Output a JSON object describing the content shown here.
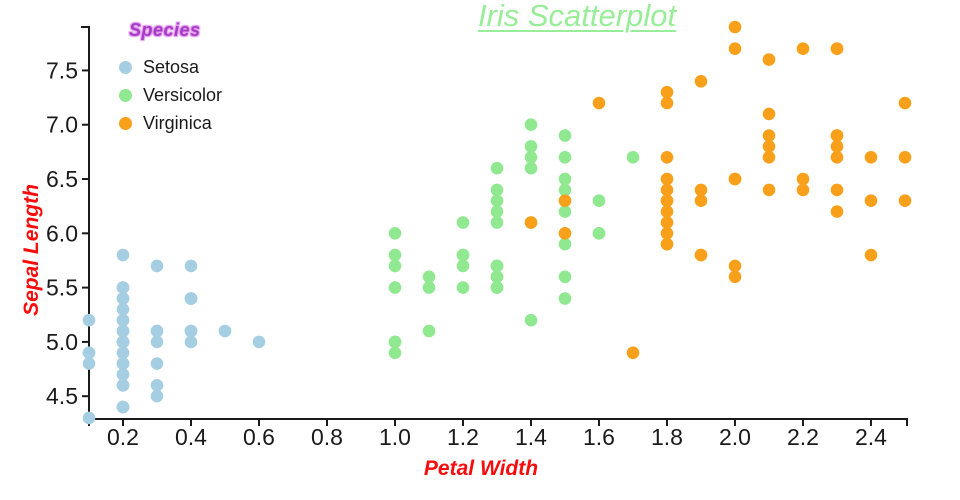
{
  "chart_data": {
    "type": "scatter",
    "title": "Iris Scatterplot",
    "title_color": "#98EE98",
    "xlabel": "Petal Width",
    "ylabel": "Sepal Length",
    "axis_label_color": "#F80D0D",
    "axis_color": "#1a1a1a",
    "legend_title": "Species",
    "legend_title_color": "#A53CC8",
    "legend_title_halo_color": "#E39BE8",
    "legend_position": "top-left",
    "grid": false,
    "xlim": [
      0.1,
      2.506
    ],
    "ylim": [
      4.29,
      7.9
    ],
    "x_ticks": [
      "0.2",
      "0.4",
      "0.6",
      "0.8",
      "1.0",
      "1.2",
      "1.4",
      "1.6",
      "1.8",
      "2.0",
      "2.2",
      "2.4"
    ],
    "y_ticks": [
      "4.5",
      "5.0",
      "5.5",
      "6.0",
      "6.5",
      "7.0",
      "7.5"
    ],
    "series": [
      {
        "name": "Setosa",
        "color": "#A6CEE3",
        "points": [
          [
            0.2,
            5.1
          ],
          [
            0.2,
            4.9
          ],
          [
            0.2,
            4.7
          ],
          [
            0.2,
            4.6
          ],
          [
            0.2,
            5.0
          ],
          [
            0.4,
            5.4
          ],
          [
            0.3,
            4.6
          ],
          [
            0.2,
            5.0
          ],
          [
            0.2,
            4.4
          ],
          [
            0.1,
            4.9
          ],
          [
            0.2,
            5.4
          ],
          [
            0.2,
            4.8
          ],
          [
            0.1,
            4.8
          ],
          [
            0.1,
            4.3
          ],
          [
            0.2,
            5.8
          ],
          [
            0.4,
            5.7
          ],
          [
            0.4,
            5.4
          ],
          [
            0.3,
            5.1
          ],
          [
            0.3,
            5.7
          ],
          [
            0.3,
            5.1
          ],
          [
            0.2,
            5.4
          ],
          [
            0.4,
            5.1
          ],
          [
            0.2,
            4.6
          ],
          [
            0.5,
            5.1
          ],
          [
            0.2,
            4.8
          ],
          [
            0.2,
            5.0
          ],
          [
            0.4,
            5.0
          ],
          [
            0.2,
            5.2
          ],
          [
            0.2,
            5.2
          ],
          [
            0.2,
            4.7
          ],
          [
            0.2,
            4.8
          ],
          [
            0.4,
            5.4
          ],
          [
            0.1,
            5.2
          ],
          [
            0.2,
            5.5
          ],
          [
            0.2,
            4.9
          ],
          [
            0.2,
            5.0
          ],
          [
            0.2,
            5.5
          ],
          [
            0.1,
            4.9
          ],
          [
            0.2,
            4.4
          ],
          [
            0.2,
            5.1
          ],
          [
            0.3,
            5.0
          ],
          [
            0.3,
            4.5
          ],
          [
            0.2,
            4.4
          ],
          [
            0.6,
            5.0
          ],
          [
            0.4,
            5.1
          ],
          [
            0.3,
            4.8
          ],
          [
            0.2,
            5.1
          ],
          [
            0.2,
            4.6
          ],
          [
            0.2,
            5.3
          ],
          [
            0.2,
            5.0
          ]
        ]
      },
      {
        "name": "Versicolor",
        "color": "#90E890",
        "points": [
          [
            1.4,
            7.0
          ],
          [
            1.5,
            6.4
          ],
          [
            1.5,
            6.9
          ],
          [
            1.3,
            5.5
          ],
          [
            1.5,
            6.5
          ],
          [
            1.3,
            5.7
          ],
          [
            1.6,
            6.3
          ],
          [
            1.0,
            4.9
          ],
          [
            1.3,
            6.6
          ],
          [
            1.4,
            5.2
          ],
          [
            1.0,
            5.0
          ],
          [
            1.5,
            5.9
          ],
          [
            1.0,
            6.0
          ],
          [
            1.4,
            6.1
          ],
          [
            1.3,
            5.6
          ],
          [
            1.4,
            6.7
          ],
          [
            1.5,
            5.6
          ],
          [
            1.0,
            5.8
          ],
          [
            1.5,
            6.2
          ],
          [
            1.1,
            5.6
          ],
          [
            1.8,
            5.9
          ],
          [
            1.3,
            6.1
          ],
          [
            1.5,
            6.3
          ],
          [
            1.2,
            6.1
          ],
          [
            1.3,
            6.4
          ],
          [
            1.4,
            6.6
          ],
          [
            1.4,
            6.8
          ],
          [
            1.7,
            6.7
          ],
          [
            1.5,
            6.0
          ],
          [
            1.0,
            5.7
          ],
          [
            1.1,
            5.5
          ],
          [
            1.0,
            5.5
          ],
          [
            1.2,
            5.8
          ],
          [
            1.6,
            6.0
          ],
          [
            1.5,
            5.4
          ],
          [
            1.6,
            6.0
          ],
          [
            1.5,
            6.7
          ],
          [
            1.3,
            6.3
          ],
          [
            1.3,
            5.6
          ],
          [
            1.3,
            5.5
          ],
          [
            1.2,
            5.5
          ],
          [
            1.4,
            6.1
          ],
          [
            1.2,
            5.8
          ],
          [
            1.0,
            5.0
          ],
          [
            1.3,
            5.6
          ],
          [
            1.2,
            5.7
          ],
          [
            1.3,
            5.7
          ],
          [
            1.3,
            6.2
          ],
          [
            1.1,
            5.1
          ],
          [
            1.3,
            5.7
          ]
        ]
      },
      {
        "name": "Virginica",
        "color": "#F9A01B",
        "points": [
          [
            2.5,
            6.3
          ],
          [
            1.9,
            5.8
          ],
          [
            2.1,
            7.1
          ],
          [
            1.8,
            6.3
          ],
          [
            2.2,
            6.5
          ],
          [
            2.1,
            7.6
          ],
          [
            1.7,
            4.9
          ],
          [
            1.8,
            7.3
          ],
          [
            1.8,
            6.7
          ],
          [
            2.5,
            7.2
          ],
          [
            2.0,
            6.5
          ],
          [
            1.9,
            6.4
          ],
          [
            2.1,
            6.8
          ],
          [
            2.0,
            5.7
          ],
          [
            2.4,
            5.8
          ],
          [
            2.3,
            6.4
          ],
          [
            1.8,
            6.5
          ],
          [
            2.2,
            7.7
          ],
          [
            2.3,
            7.7
          ],
          [
            1.5,
            6.0
          ],
          [
            2.3,
            6.9
          ],
          [
            2.0,
            5.6
          ],
          [
            2.0,
            7.7
          ],
          [
            1.8,
            6.3
          ],
          [
            2.1,
            6.7
          ],
          [
            1.8,
            7.2
          ],
          [
            1.8,
            6.2
          ],
          [
            1.8,
            6.1
          ],
          [
            2.1,
            6.4
          ],
          [
            1.6,
            7.2
          ],
          [
            1.9,
            7.4
          ],
          [
            2.0,
            7.9
          ],
          [
            2.2,
            6.4
          ],
          [
            1.5,
            6.3
          ],
          [
            1.4,
            6.1
          ],
          [
            2.3,
            7.7
          ],
          [
            2.4,
            6.3
          ],
          [
            1.8,
            6.4
          ],
          [
            1.8,
            6.0
          ],
          [
            2.1,
            6.9
          ],
          [
            2.4,
            6.7
          ],
          [
            2.3,
            6.9
          ],
          [
            1.9,
            5.8
          ],
          [
            2.3,
            6.8
          ],
          [
            2.5,
            6.7
          ],
          [
            2.3,
            6.7
          ],
          [
            1.9,
            6.3
          ],
          [
            2.0,
            6.5
          ],
          [
            2.3,
            6.2
          ],
          [
            1.8,
            5.9
          ]
        ]
      }
    ]
  }
}
